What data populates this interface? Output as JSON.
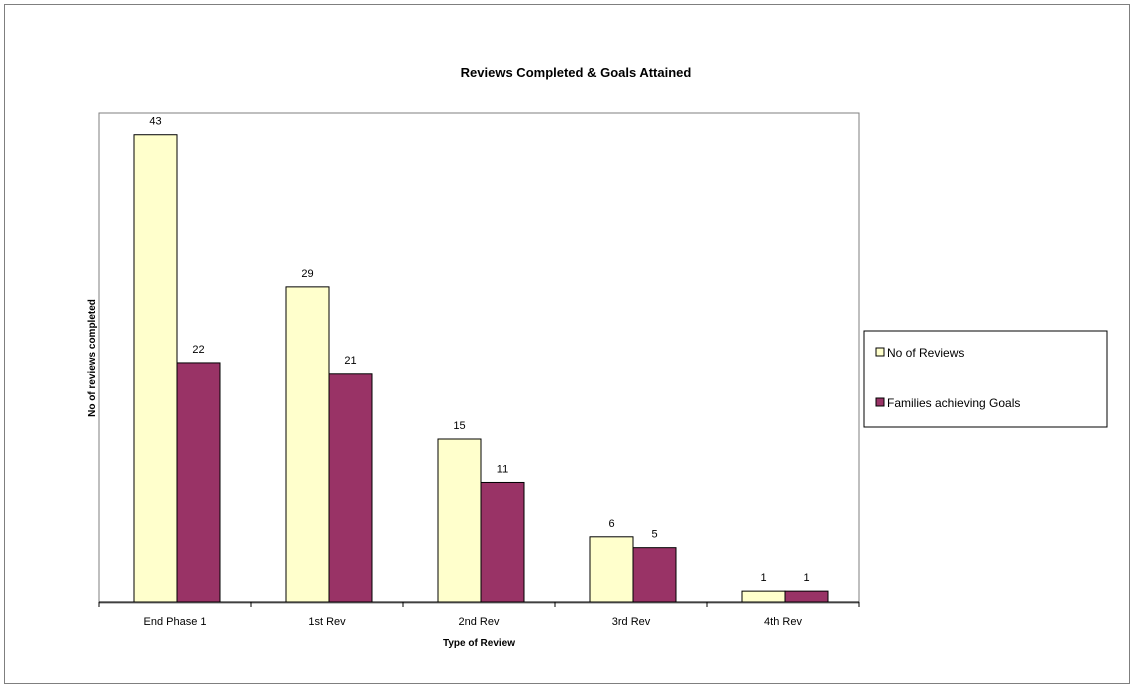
{
  "chart_data": {
    "type": "bar",
    "title": "Reviews Completed & Goals Attained",
    "xlabel": "Type of Review",
    "ylabel": "No of reviews completed",
    "categories": [
      "End Phase 1",
      "1st Rev",
      "2nd Rev",
      "3rd Rev",
      "4th Rev"
    ],
    "series": [
      {
        "name": "No of Reviews",
        "values": [
          43,
          29,
          15,
          6,
          1
        ],
        "color": "#ffffcc"
      },
      {
        "name": "Families achieving  Goals",
        "values": [
          22,
          21,
          11,
          5,
          1
        ],
        "color": "#993366"
      }
    ],
    "ylim": [
      0,
      45
    ],
    "grid": false,
    "legend_position": "right",
    "data_labels": true
  }
}
